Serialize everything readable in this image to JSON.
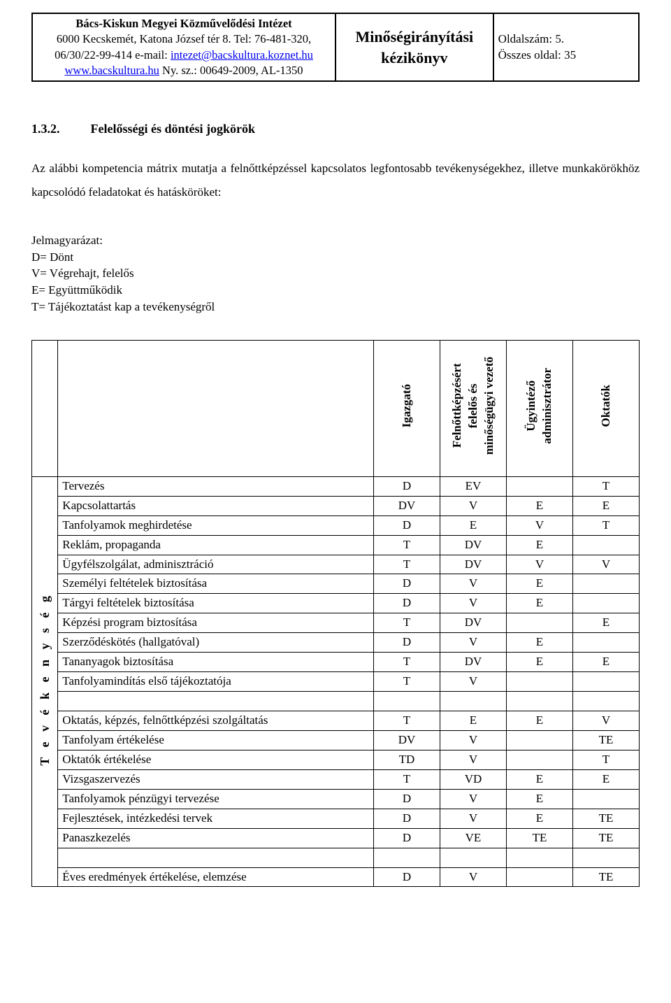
{
  "header": {
    "org_name": "Bács-Kiskun Megyei Közművelődési Intézet",
    "address_line": "6000 Kecskemét, Katona József tér 8. Tel: 76-481-320, 06/30/22-99-414 e-mail: ",
    "email": "intezet@bacskultura.koznet.hu",
    "site": "www.bacskultura.hu",
    "reg_suffix": " Ny. sz.: 00649-2009, AL-1350",
    "doc_title_1": "Minőségirányítási",
    "doc_title_2": "kézikönyv",
    "page_label": "Oldalszám: 5.",
    "total_label": "Összes oldal: 35"
  },
  "section": {
    "number": "1.3.2.",
    "title": "Felelősségi és döntési jogkörök",
    "intro": "Az alábbi kompetencia mátrix mutatja a felnőttképzéssel kapcsolatos legfontosabb tevékenységekhez, illetve munkakörökhöz kapcsolódó feladatokat és hatásköröket:"
  },
  "legend": {
    "title": "Jelmagyarázat:",
    "d": "D= Dönt",
    "v": "V= Végrehajt, felelős",
    "e": "E= Együttműködik",
    "t": "T= Tájékoztatást kap a tevékenységről"
  },
  "matrix": {
    "side_label": "T e v é k e n y s é g",
    "columns": [
      "Igazgató",
      "Felnőttképzésért felelős és minőségügyi vezető",
      "Ügyintéző adminisztrátor",
      "Oktatók"
    ],
    "rows": [
      {
        "label": "Tervezés",
        "vals": [
          "D",
          "EV",
          "",
          "T"
        ]
      },
      {
        "label": "Kapcsolattartás",
        "vals": [
          "DV",
          "V",
          "E",
          "E"
        ]
      },
      {
        "label": "Tanfolyamok meghirdetése",
        "vals": [
          "D",
          "E",
          "V",
          "T"
        ]
      },
      {
        "label": "Reklám, propaganda",
        "vals": [
          "T",
          "DV",
          "E",
          ""
        ]
      },
      {
        "label": "Ügyfélszolgálat, adminisztráció",
        "vals": [
          "T",
          "DV",
          "V",
          "V"
        ]
      },
      {
        "label": "Személyi feltételek biztosítása",
        "vals": [
          "D",
          "V",
          "E",
          ""
        ]
      },
      {
        "label": "Tárgyi feltételek biztosítása",
        "vals": [
          "D",
          "V",
          "E",
          ""
        ]
      },
      {
        "label": "Képzési program biztosítása",
        "vals": [
          "T",
          "DV",
          "",
          "E"
        ]
      },
      {
        "label": "Szerződéskötés (hallgatóval)",
        "vals": [
          "D",
          "V",
          "E",
          ""
        ]
      },
      {
        "label": "Tananyagok biztosítása",
        "vals": [
          "T",
          "DV",
          "E",
          "E"
        ]
      },
      {
        "label": "Tanfolyamindítás első tájékoztatója",
        "vals": [
          "T",
          "V",
          "",
          ""
        ]
      },
      {
        "spacer": true
      },
      {
        "label": "Oktatás, képzés, felnőttképzési szolgáltatás",
        "vals": [
          "T",
          "E",
          "E",
          "V"
        ]
      },
      {
        "label": "Tanfolyam értékelése",
        "vals": [
          "DV",
          "V",
          "",
          "TE"
        ]
      },
      {
        "label": "Oktatók értékelése",
        "vals": [
          "TD",
          "V",
          "",
          "T"
        ]
      },
      {
        "label": "Vizsgaszervezés",
        "vals": [
          "T",
          "VD",
          "E",
          "E"
        ]
      },
      {
        "label": "Tanfolyamok pénzügyi tervezése",
        "vals": [
          "D",
          "V",
          "E",
          ""
        ]
      },
      {
        "label": "Fejlesztések, intézkedési tervek",
        "vals": [
          "D",
          "V",
          "E",
          "TE"
        ]
      },
      {
        "label": "Panaszkezelés",
        "vals": [
          "D",
          "VE",
          "TE",
          "TE"
        ]
      },
      {
        "spacer": true
      },
      {
        "label": "Éves eredmények értékelése, elemzése",
        "vals": [
          "D",
          "V",
          "",
          "TE"
        ]
      }
    ]
  }
}
